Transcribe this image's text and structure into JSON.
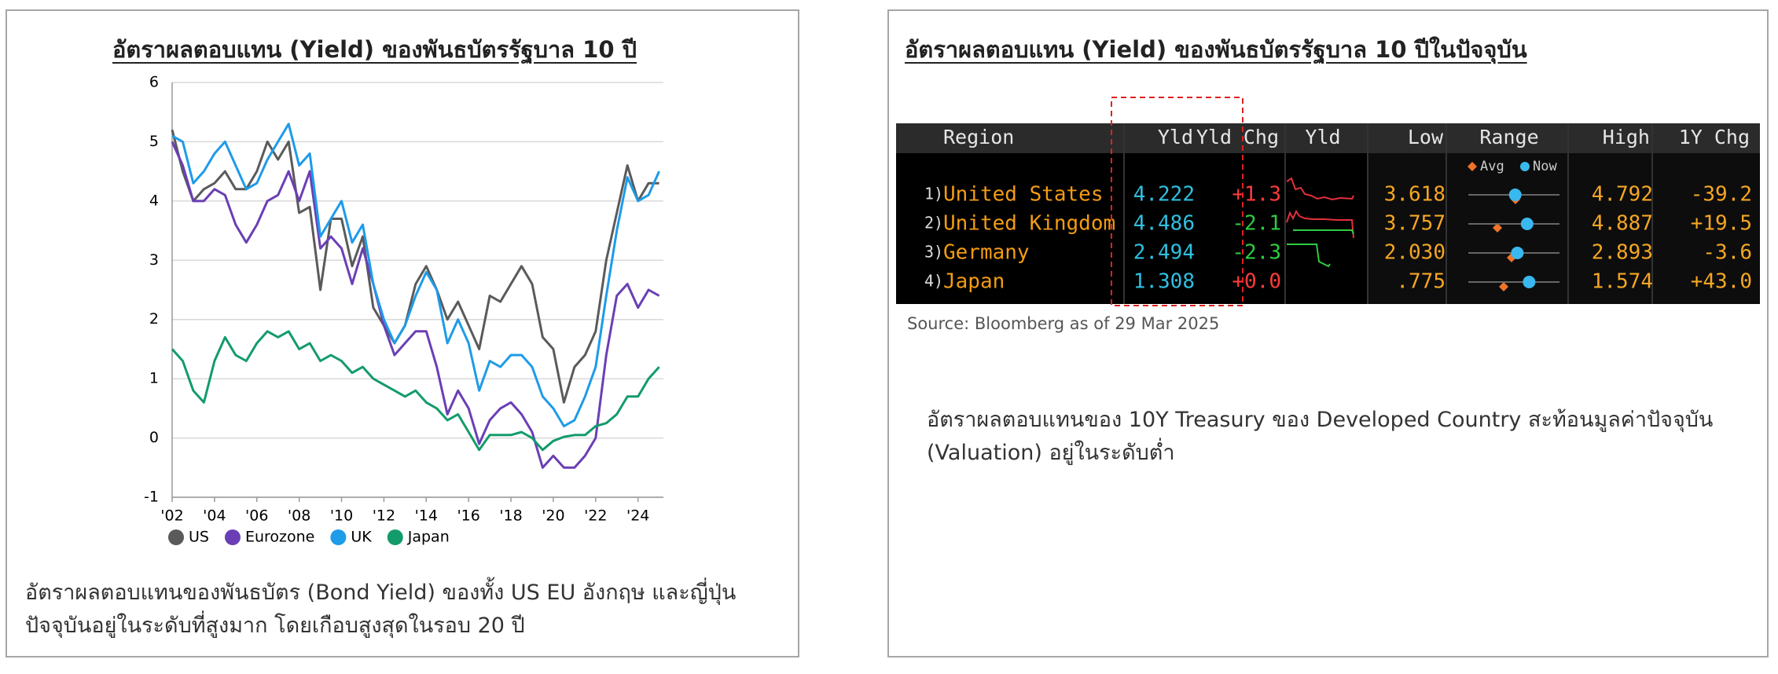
{
  "chart_data": {
    "type": "line",
    "title": "อัตราผลตอบแทน (Yield) ของพันธบัตรรัฐบาล 10 ปี",
    "x": [
      2002,
      2002.5,
      2003,
      2003.5,
      2004,
      2004.5,
      2005,
      2005.5,
      2006,
      2006.5,
      2007,
      2007.5,
      2008,
      2008.5,
      2009,
      2009.5,
      2010,
      2010.5,
      2011,
      2011.5,
      2012,
      2012.5,
      2013,
      2013.5,
      2014,
      2014.5,
      2015,
      2015.5,
      2016,
      2016.5,
      2017,
      2017.5,
      2018,
      2018.5,
      2019,
      2019.5,
      2020,
      2020.5,
      2021,
      2021.5,
      2022,
      2022.5,
      2023,
      2023.5,
      2024,
      2024.5,
      2025
    ],
    "series": [
      {
        "name": "US",
        "color": "#5a5a5a",
        "values": [
          5.2,
          4.5,
          4.0,
          4.2,
          4.3,
          4.5,
          4.2,
          4.2,
          4.5,
          5.0,
          4.7,
          5.0,
          3.8,
          3.9,
          2.5,
          3.7,
          3.7,
          2.9,
          3.4,
          2.2,
          1.9,
          1.6,
          1.9,
          2.6,
          2.9,
          2.5,
          2.0,
          2.3,
          1.9,
          1.5,
          2.4,
          2.3,
          2.6,
          2.9,
          2.6,
          1.7,
          1.5,
          0.6,
          1.2,
          1.4,
          1.8,
          3.0,
          3.8,
          4.6,
          4.0,
          4.3,
          4.3
        ]
      },
      {
        "name": "Eurozone",
        "color": "#6a3fb5",
        "values": [
          5.0,
          4.6,
          4.0,
          4.0,
          4.2,
          4.1,
          3.6,
          3.3,
          3.6,
          4.0,
          4.1,
          4.5,
          4.0,
          4.5,
          3.2,
          3.4,
          3.2,
          2.6,
          3.2,
          2.6,
          1.9,
          1.4,
          1.6,
          1.8,
          1.8,
          1.2,
          0.4,
          0.8,
          0.5,
          -0.1,
          0.3,
          0.5,
          0.6,
          0.4,
          0.1,
          -0.5,
          -0.3,
          -0.5,
          -0.5,
          -0.3,
          0.0,
          1.4,
          2.4,
          2.6,
          2.2,
          2.5,
          2.4
        ]
      },
      {
        "name": "UK",
        "color": "#1e9be9",
        "values": [
          5.1,
          5.0,
          4.3,
          4.5,
          4.8,
          5.0,
          4.6,
          4.2,
          4.3,
          4.7,
          5.0,
          5.3,
          4.6,
          4.8,
          3.4,
          3.7,
          4.0,
          3.3,
          3.6,
          2.6,
          2.0,
          1.6,
          1.9,
          2.4,
          2.8,
          2.5,
          1.6,
          2.0,
          1.6,
          0.8,
          1.3,
          1.2,
          1.4,
          1.4,
          1.2,
          0.7,
          0.5,
          0.2,
          0.3,
          0.7,
          1.2,
          2.4,
          3.5,
          4.4,
          4.0,
          4.1,
          4.5
        ]
      },
      {
        "name": "Japan",
        "color": "#139b6b",
        "values": [
          1.5,
          1.3,
          0.8,
          0.6,
          1.3,
          1.7,
          1.4,
          1.3,
          1.6,
          1.8,
          1.7,
          1.8,
          1.5,
          1.6,
          1.3,
          1.4,
          1.3,
          1.1,
          1.2,
          1.0,
          0.9,
          0.8,
          0.7,
          0.8,
          0.6,
          0.5,
          0.3,
          0.4,
          0.1,
          -0.2,
          0.05,
          0.05,
          0.05,
          0.1,
          0.0,
          -0.2,
          -0.05,
          0.02,
          0.05,
          0.05,
          0.2,
          0.25,
          0.4,
          0.7,
          0.7,
          1.0,
          1.2
        ]
      }
    ],
    "xlim": [
      2002,
      2025.2
    ],
    "xticks": [
      {
        "value": 2002,
        "label": "'02"
      },
      {
        "value": 2004,
        "label": "'04"
      },
      {
        "value": 2006,
        "label": "'06"
      },
      {
        "value": 2008,
        "label": "'08"
      },
      {
        "value": 2010,
        "label": "'10"
      },
      {
        "value": 2012,
        "label": "'12"
      },
      {
        "value": 2014,
        "label": "'14"
      },
      {
        "value": 2016,
        "label": "'16"
      },
      {
        "value": 2018,
        "label": "'18"
      },
      {
        "value": 2020,
        "label": "'20"
      },
      {
        "value": 2022,
        "label": "'22"
      },
      {
        "value": 2024,
        "label": "'24"
      }
    ],
    "ylim": [
      -1,
      6
    ],
    "yticks": [
      -1,
      0,
      1,
      2,
      3,
      4,
      5,
      6
    ],
    "grid": true,
    "legend": "bottom"
  },
  "left_caption": [
    "อัตราผลตอบแทนของพันธบัตร (Bond Yield) ของทั้ง US EU อังกฤษ และญี่ปุ่น",
    "ปัจจุบันอยู่ในระดับที่สูงมาก โดยเกือบสูงสุดในรอบ 20 ปี"
  ],
  "right_panel": {
    "title": "อัตราผลตอบแทน (Yield) ของพันธบัตรรัฐบาล 10 ปีในปัจจุบัน",
    "table": {
      "header": [
        "Region",
        "Yld",
        "Yld",
        "Chg",
        "Yld",
        "Low",
        "Range",
        "High",
        "1Y Chg"
      ],
      "legend": [
        "Avg",
        "Now"
      ],
      "rows": [
        {
          "index": "1)",
          "region": "United States",
          "yld": "4.222",
          "chg": "+1.3",
          "low": "3.618",
          "high": "4.792",
          "chg_1y": "-39.2"
        },
        {
          "index": "2)",
          "region": "United Kingdom",
          "yld": "4.486",
          "chg": "-2.1",
          "low": "3.757",
          "high": "4.887",
          "chg_1y": "+19.5"
        },
        {
          "index": "3)",
          "region": "Germany",
          "yld": "2.494",
          "chg": "-2.3",
          "low": "2.030",
          "high": "2.893",
          "chg_1y": "-3.6"
        },
        {
          "index": "4)",
          "region": "Japan",
          "yld": "1.308",
          "chg": "+0.0",
          "low": ".775",
          "high": "1.574",
          "chg_1y": "+43.0"
        }
      ]
    },
    "source": "Source: Bloomberg as of 29 Mar 2025",
    "caption": [
      "อัตราผลตอบแทนของ 10Y Treasury ของ Developed Country สะท้อนมูลค่าปัจจุบัน",
      "(Valuation) อยู่ในระดับต่ำ"
    ]
  }
}
